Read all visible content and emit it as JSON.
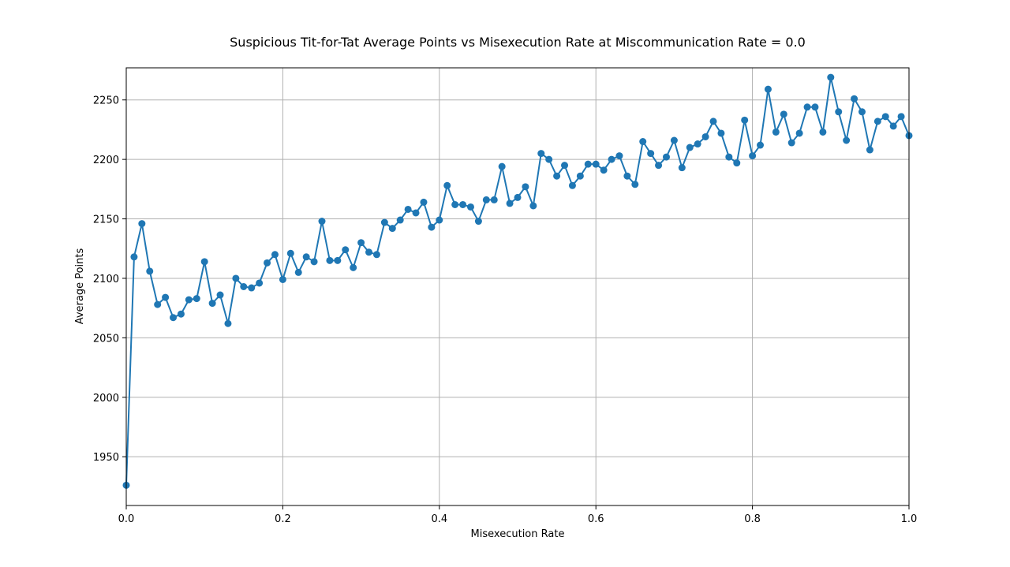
{
  "chart_data": {
    "type": "line",
    "title": "Suspicious Tit-for-Tat Average Points vs Misexecution Rate at Miscommunication Rate = 0.0",
    "xlabel": "Misexecution Rate",
    "ylabel": "Average Points",
    "xlim": [
      0.0,
      1.0
    ],
    "ylim": [
      1909,
      2277
    ],
    "x_ticks": [
      0.0,
      0.2,
      0.4,
      0.6,
      0.8,
      1.0
    ],
    "x_tick_labels": [
      "0.0",
      "0.2",
      "0.4",
      "0.6",
      "0.8",
      "1.0"
    ],
    "y_ticks": [
      1950,
      2000,
      2050,
      2100,
      2150,
      2200,
      2250
    ],
    "y_tick_labels": [
      "1950",
      "2000",
      "2050",
      "2100",
      "2150",
      "2200",
      "2250"
    ],
    "grid": true,
    "color": "#1f77b4",
    "series": [
      {
        "x": [
          0.0,
          0.01,
          0.02,
          0.03,
          0.04,
          0.05,
          0.06,
          0.07,
          0.08,
          0.09,
          0.1,
          0.11,
          0.12,
          0.13,
          0.14,
          0.15,
          0.16,
          0.17,
          0.18,
          0.19,
          0.2,
          0.21,
          0.22,
          0.23,
          0.24,
          0.25,
          0.26,
          0.27,
          0.28,
          0.29,
          0.3,
          0.31,
          0.32,
          0.33,
          0.34,
          0.35,
          0.36,
          0.37,
          0.38,
          0.39,
          0.4,
          0.41,
          0.42,
          0.43,
          0.44,
          0.45,
          0.46,
          0.47,
          0.48,
          0.49,
          0.5,
          0.51,
          0.52,
          0.53,
          0.54,
          0.55,
          0.56,
          0.57,
          0.58,
          0.59,
          0.6,
          0.61,
          0.62,
          0.63,
          0.64,
          0.65,
          0.66,
          0.67,
          0.68,
          0.69,
          0.7,
          0.71,
          0.72,
          0.73,
          0.74,
          0.75,
          0.76,
          0.77,
          0.78,
          0.79,
          0.8,
          0.81,
          0.82,
          0.83,
          0.84,
          0.85,
          0.86,
          0.87,
          0.88,
          0.89,
          0.9,
          0.91,
          0.92,
          0.93,
          0.94,
          0.95,
          0.96,
          0.97,
          0.98,
          0.99,
          1.0
        ],
        "values": [
          1926,
          2118,
          2146,
          2106,
          2078,
          2084,
          2067,
          2070,
          2082,
          2083,
          2114,
          2079,
          2086,
          2062,
          2100,
          2093,
          2092,
          2096,
          2113,
          2120,
          2099,
          2121,
          2105,
          2118,
          2114,
          2148,
          2115,
          2115,
          2124,
          2109,
          2130,
          2122,
          2120,
          2147,
          2142,
          2149,
          2158,
          2155,
          2164,
          2143,
          2149,
          2178,
          2162,
          2162,
          2160,
          2148,
          2166,
          2166,
          2194,
          2163,
          2168,
          2177,
          2161,
          2205,
          2200,
          2186,
          2195,
          2178,
          2186,
          2196,
          2196,
          2191,
          2200,
          2203,
          2186,
          2179,
          2215,
          2205,
          2195,
          2202,
          2216,
          2193,
          2210,
          2213,
          2219,
          2232,
          2222,
          2202,
          2197,
          2233,
          2203,
          2212,
          2259,
          2223,
          2238,
          2214,
          2222,
          2244,
          2244,
          2223,
          2269,
          2240,
          2216,
          2251,
          2240,
          2208,
          2232,
          2236,
          2228,
          2236,
          2220
        ]
      }
    ]
  }
}
